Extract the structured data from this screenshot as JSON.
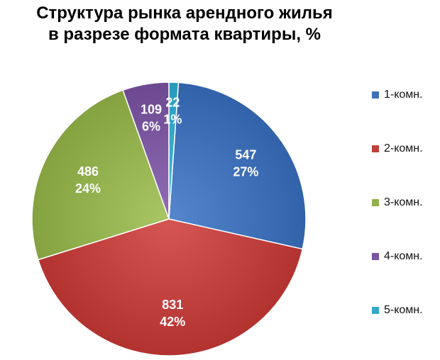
{
  "chart_data": {
    "type": "pie",
    "title_lines": [
      "Структура рынка арендного жилья",
      "в разрезе формата квартиры, %"
    ],
    "categories": [
      "1-комн.",
      "2-комн.",
      "3-комн.",
      "4-комн.",
      "5-комн."
    ],
    "values": [
      547,
      831,
      486,
      109,
      22
    ],
    "percent_labels": [
      "27%",
      "42%",
      "24%",
      "6%",
      "1%"
    ],
    "value_labels": [
      "547",
      "831",
      "486",
      "109",
      "22"
    ],
    "colors": [
      "#3F70B8",
      "#C0403D",
      "#92B04E",
      "#7A579E",
      "#35A8C9"
    ],
    "start_angle_deg": 4,
    "direction": "clockwise",
    "legend_position": "right"
  }
}
